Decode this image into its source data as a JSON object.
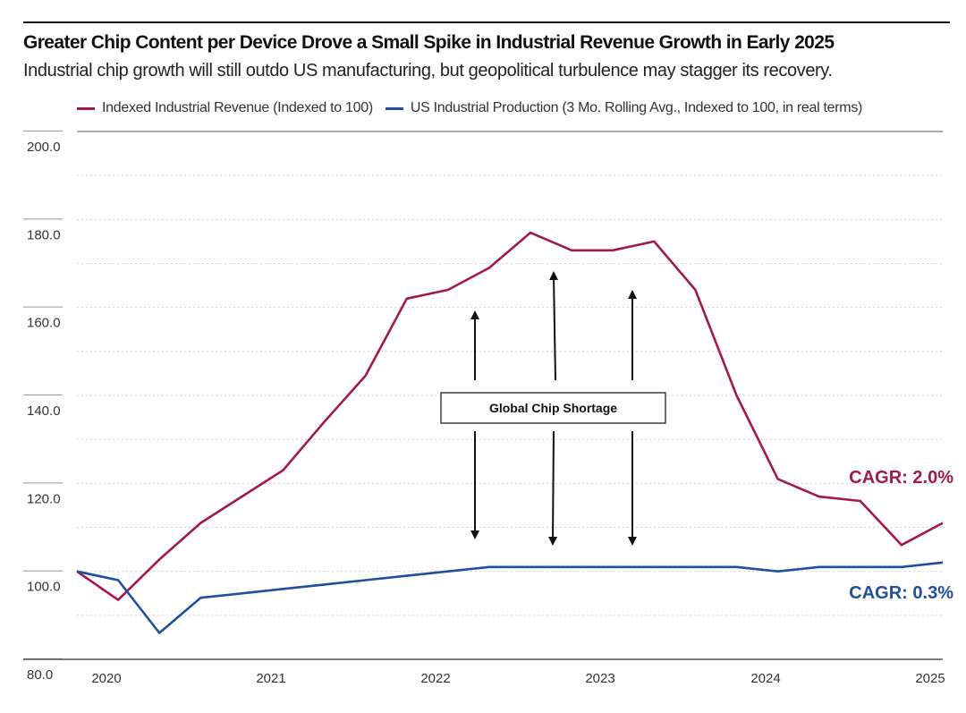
{
  "header": {
    "title": "Greater Chip Content per Device Drove a Small Spike in Industrial Revenue Growth in Early 2025",
    "subtitle": "Industrial chip growth will still outdo US manufacturing, but geopolitical turbulence may stagger its recovery."
  },
  "colors": {
    "revenue": "#a3194a",
    "production": "#1f4fa0",
    "grid": "#c8c8c8"
  },
  "chart_data": {
    "type": "line",
    "title": "Greater Chip Content per Device Drove a Small Spike in Industrial Revenue Growth in Early 2025",
    "subtitle": "Industrial chip growth will still outdo US manufacturing, but geopolitical turbulence may stagger its recovery.",
    "xlabel": "",
    "ylabel": "",
    "ylim": [
      80,
      200
    ],
    "xlim": [
      2019.8,
      2025.05
    ],
    "yticks": [
      "200.0",
      "180.0",
      "160.0",
      "140.0",
      "120.0",
      "100.0",
      "80.0"
    ],
    "xticks": [
      "2020",
      "2021",
      "2022",
      "2023",
      "2024",
      "2025"
    ],
    "grid": true,
    "legend_position": "top-left",
    "series": [
      {
        "name": "Indexed Industrial Revenue (Indexed to 100)",
        "color": "#a3194a",
        "x": [
          2019.8,
          2020.05,
          2020.3,
          2020.55,
          2020.8,
          2021.05,
          2021.3,
          2021.55,
          2021.8,
          2022.05,
          2022.3,
          2022.55,
          2022.8,
          2023.05,
          2023.3,
          2023.55,
          2023.8,
          2024.05,
          2024.3,
          2024.55,
          2024.8,
          2025.05
        ],
        "values": [
          100.0,
          93.5,
          102.7,
          111.0,
          117.0,
          123.0,
          134.0,
          144.5,
          162.0,
          164.0,
          169.0,
          177.0,
          173.0,
          173.0,
          175.0,
          164.0,
          140.0,
          121.0,
          117.0,
          116.0,
          106.0,
          111.0
        ]
      },
      {
        "name": "US Industrial Production (3 Mo. Rolling Avg., Indexed to 100, in real terms)",
        "color": "#1f4fa0",
        "x": [
          2019.8,
          2020.05,
          2020.3,
          2020.55,
          2020.8,
          2021.05,
          2021.3,
          2021.55,
          2021.8,
          2022.05,
          2022.3,
          2022.55,
          2022.8,
          2023.05,
          2023.3,
          2023.55,
          2023.8,
          2024.05,
          2024.3,
          2024.55,
          2024.8,
          2025.05
        ],
        "values": [
          100.0,
          98.0,
          86.0,
          94.0,
          95.0,
          96.0,
          97.0,
          98.0,
          99.0,
          100.0,
          101.0,
          101.0,
          101.0,
          101.0,
          101.0,
          101.0,
          101.0,
          100.0,
          101.0,
          101.0,
          101.0,
          102.0
        ]
      }
    ],
    "annotations": {
      "box_label": "Global Chip Shortage",
      "cagr_revenue": "CAGR: 2.0%",
      "cagr_production": "CAGR: 0.3%"
    }
  }
}
